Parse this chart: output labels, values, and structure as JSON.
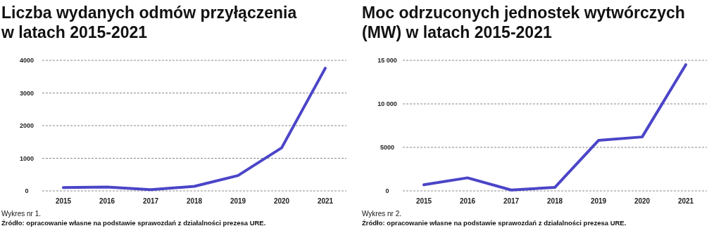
{
  "chart_data": [
    {
      "type": "line",
      "title": "Liczba wydanych odmów przyłączenia\nw latach 2015-2021",
      "categories": [
        "2015",
        "2016",
        "2017",
        "2018",
        "2019",
        "2020",
        "2021"
      ],
      "series": [
        {
          "color": "#4b45c8",
          "values": [
            100,
            120,
            40,
            140,
            470,
            1320,
            3760
          ]
        }
      ],
      "ylim": [
        0,
        4000
      ],
      "yticks": [
        0,
        1000,
        2000,
        3000,
        4000
      ],
      "grid": "y",
      "marker": "none",
      "line_style": "solid",
      "annotations": [
        "Wykres nr 1.",
        "Źródło: opracowanie własne na podstawie sprawozdań z działalności prezesa URE."
      ]
    },
    {
      "type": "line",
      "title": "Moc odrzuconych jednostek wytwórczych\n(MW) w latach 2015-2021",
      "categories": [
        "2015",
        "2016",
        "2017",
        "2018",
        "2019",
        "2020",
        "2021"
      ],
      "series": [
        {
          "color": "#4b45c8",
          "values": [
            700,
            1500,
            100,
            400,
            5800,
            6200,
            14500
          ]
        }
      ],
      "ylim": [
        0,
        15000
      ],
      "yticks": [
        0,
        5000,
        {
          "value": 10000,
          "label": "10 000"
        },
        {
          "value": 15000,
          "label": "15 000"
        }
      ],
      "grid": "y",
      "marker": "none",
      "line_style": "solid",
      "annotations": [
        "Wykres nr 2.",
        "Źródło: opracowanie własne na podstawie sprawozdań z działalności prezesa URE."
      ]
    }
  ]
}
